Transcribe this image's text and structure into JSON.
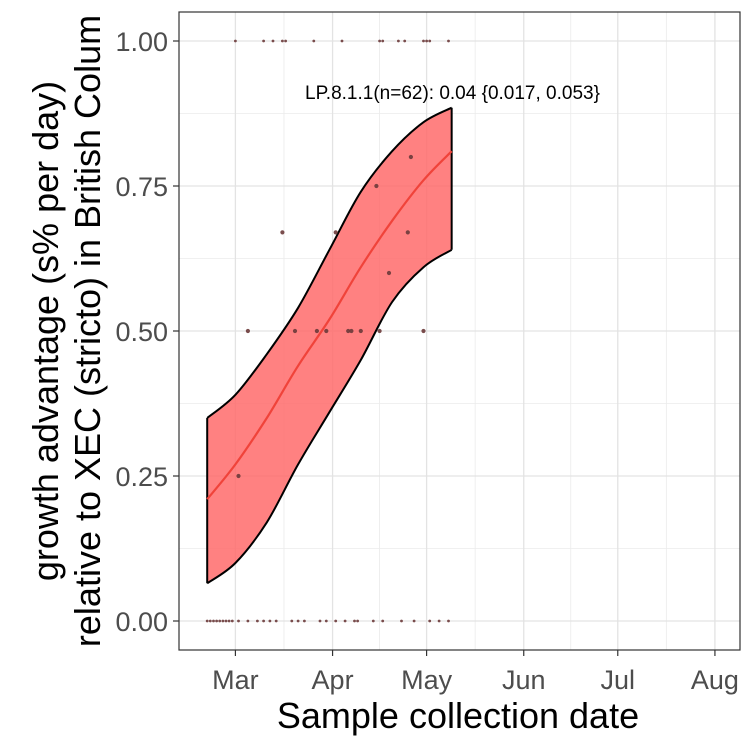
{
  "chart_data": {
    "type": "scatter",
    "xlabel": "Sample collection date",
    "ylabel": [
      "growth advantage (s% per day)",
      "relative to XEC (stricto) in British Colum"
    ],
    "annotation": "LP.8.1.1(n=62): 0.04 {0.017, 0.053}",
    "x_ticks": [
      "2025-03-01",
      "2025-04-01",
      "2025-05-01",
      "2025-06-01",
      "2025-07-01",
      "2025-08-01"
    ],
    "x_tick_labels": [
      "Mar",
      "Apr",
      "May",
      "Jun",
      "Jul",
      "Aug"
    ],
    "xlim": [
      "2025-02-11",
      "2025-08-09"
    ],
    "y_ticks": [
      0.0,
      0.25,
      0.5,
      0.75,
      1.0
    ],
    "y_tick_labels": [
      "0.00",
      "0.25",
      "0.50",
      "0.75",
      "1.00"
    ],
    "ylim": [
      -0.05,
      1.05
    ],
    "grid": true,
    "colors": {
      "fit": "#f0433a",
      "band": "#ff6b6b",
      "band_outline": "#000000",
      "points": "#6b3a3a"
    },
    "fit": {
      "x": [
        "2025-02-20",
        "2025-03-01",
        "2025-03-11",
        "2025-03-21",
        "2025-03-31",
        "2025-04-10",
        "2025-04-20",
        "2025-04-30",
        "2025-05-09"
      ],
      "y": [
        0.21,
        0.27,
        0.35,
        0.44,
        0.52,
        0.61,
        0.69,
        0.76,
        0.81
      ],
      "lower": [
        0.065,
        0.1,
        0.17,
        0.27,
        0.36,
        0.45,
        0.55,
        0.61,
        0.64
      ],
      "upper": [
        0.35,
        0.39,
        0.46,
        0.54,
        0.64,
        0.74,
        0.81,
        0.86,
        0.885
      ]
    },
    "points": {
      "x": [
        "2025-03-01",
        "2025-03-10",
        "2025-03-13",
        "2025-03-16",
        "2025-03-17",
        "2025-03-26",
        "2025-04-04",
        "2025-04-16",
        "2025-04-17",
        "2025-04-22",
        "2025-04-24",
        "2025-04-30",
        "2025-05-01",
        "2025-05-02",
        "2025-05-08",
        "2025-02-20",
        "2025-02-21",
        "2025-02-22",
        "2025-02-23",
        "2025-02-24",
        "2025-02-25",
        "2025-02-26",
        "2025-02-27",
        "2025-02-28",
        "2025-03-02",
        "2025-03-05",
        "2025-03-08",
        "2025-03-10",
        "2025-03-12",
        "2025-03-14",
        "2025-03-19",
        "2025-03-21",
        "2025-03-23",
        "2025-03-28",
        "2025-03-30",
        "2025-04-02",
        "2025-04-05",
        "2025-04-08",
        "2025-04-09",
        "2025-04-14",
        "2025-04-17",
        "2025-04-23",
        "2025-04-27",
        "2025-05-02",
        "2025-05-05",
        "2025-05-08",
        "2025-03-02",
        "2025-03-05",
        "2025-03-20",
        "2025-03-27",
        "2025-03-30",
        "2025-04-06",
        "2025-04-07",
        "2025-04-10",
        "2025-04-16",
        "2025-04-19",
        "2025-04-26",
        "2025-04-15",
        "2025-03-16",
        "2025-04-02",
        "2025-04-25",
        "2025-04-30"
      ],
      "y": [
        1,
        1,
        1,
        1,
        1,
        1,
        1,
        1,
        1,
        1,
        1,
        1,
        1,
        1,
        1,
        0,
        0,
        0,
        0,
        0,
        0,
        0,
        0,
        0,
        0,
        0,
        0,
        0,
        0,
        0,
        0,
        0,
        0,
        0,
        0,
        0,
        0,
        0,
        0,
        0,
        0,
        0,
        0,
        0,
        0,
        0,
        0.25,
        0.5,
        0.5,
        0.5,
        0.5,
        0.5,
        0.5,
        0.5,
        0.5,
        0.6,
        0.8,
        0.75,
        0.67,
        0.67,
        0.67,
        0.5
      ]
    }
  }
}
